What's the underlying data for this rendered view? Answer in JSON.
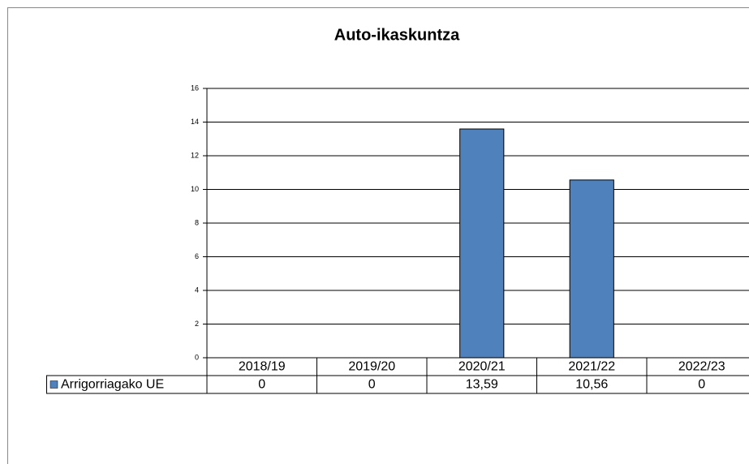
{
  "chart_data": {
    "type": "bar",
    "title": "Auto-ikaskuntza",
    "categories": [
      "2018/19",
      "2019/20",
      "2020/21",
      "2021/22",
      "2022/23"
    ],
    "series": [
      {
        "name": "Arrigorriagako UE",
        "color": "#4f81bd",
        "values": [
          0,
          0,
          13.59,
          10.56,
          0
        ],
        "value_labels": [
          "0",
          "0",
          "13,59",
          "10,56",
          "0"
        ]
      }
    ],
    "ylim": [
      0,
      16
    ],
    "yticks": [
      0,
      2,
      4,
      6,
      8,
      10,
      12,
      14,
      16
    ],
    "grid": true
  }
}
